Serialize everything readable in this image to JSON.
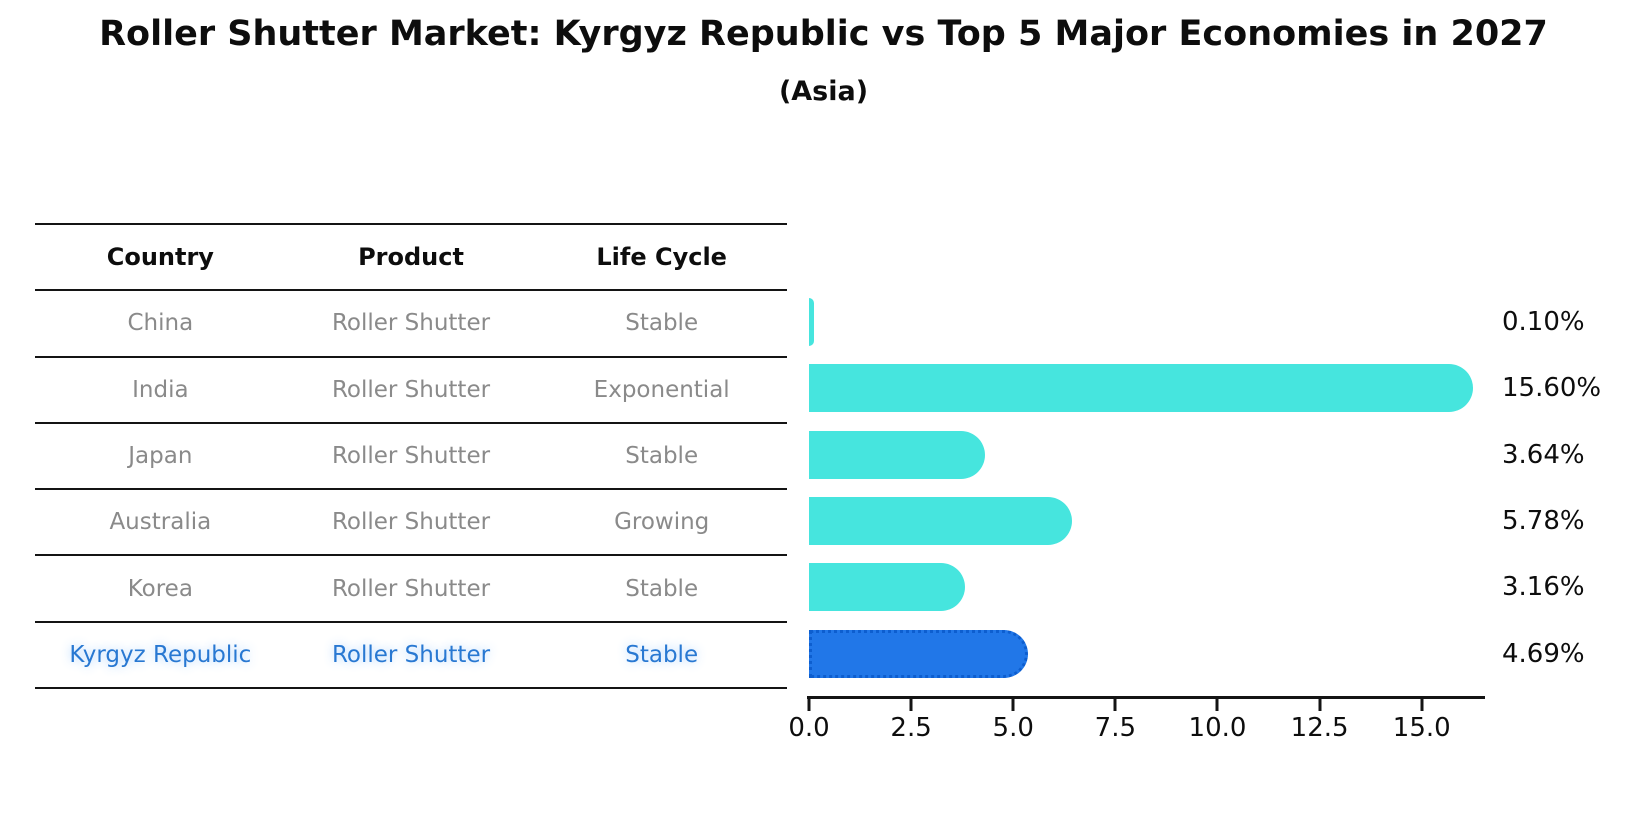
{
  "title": "Roller Shutter Market: Kyrgyz Republic vs Top 5 Major Economies in 2027",
  "subtitle": "(Asia)",
  "table": {
    "headers": [
      "Country",
      "Product",
      "Life Cycle"
    ],
    "rows": [
      {
        "country": "China",
        "product": "Roller Shutter",
        "life_cycle": "Stable",
        "highlight": false
      },
      {
        "country": "India",
        "product": "Roller Shutter",
        "life_cycle": "Exponential",
        "highlight": false
      },
      {
        "country": "Japan",
        "product": "Roller Shutter",
        "life_cycle": "Stable",
        "highlight": false
      },
      {
        "country": "Australia",
        "product": "Roller Shutter",
        "life_cycle": "Growing",
        "highlight": false
      },
      {
        "country": "Korea",
        "product": "Roller Shutter",
        "life_cycle": "Stable",
        "highlight": false
      },
      {
        "country": "Kyrgyz Republic",
        "product": "Roller Shutter",
        "life_cycle": "Stable",
        "highlight": true
      }
    ]
  },
  "chart_data": {
    "type": "bar",
    "orientation": "horizontal",
    "title": "Roller Shutter Market: Kyrgyz Republic vs Top 5 Major Economies in 2027 (Asia)",
    "categories": [
      "China",
      "India",
      "Japan",
      "Australia",
      "Korea",
      "Kyrgyz Republic"
    ],
    "values": [
      0.1,
      15.6,
      3.64,
      5.78,
      3.16,
      4.69
    ],
    "labels": [
      "0.10%",
      "15.60%",
      "3.64%",
      "5.78%",
      "3.16%",
      "4.69%"
    ],
    "xlim": [
      0,
      16.5
    ],
    "xticks": [
      "0.0",
      "2.5",
      "5.0",
      "7.5",
      "10.0",
      "12.5",
      "15.0"
    ],
    "xtick_values": [
      0,
      2.5,
      5,
      7.5,
      10,
      12.5,
      15
    ],
    "grid": false,
    "legend": false,
    "bar_color": "#46e5de",
    "highlight_color": "#2177e8",
    "highlight_border_color": "#0d5ecf",
    "highlight_index": 5,
    "highlight_text_color": "#2878d2",
    "text_color": "#8a8a8a"
  }
}
